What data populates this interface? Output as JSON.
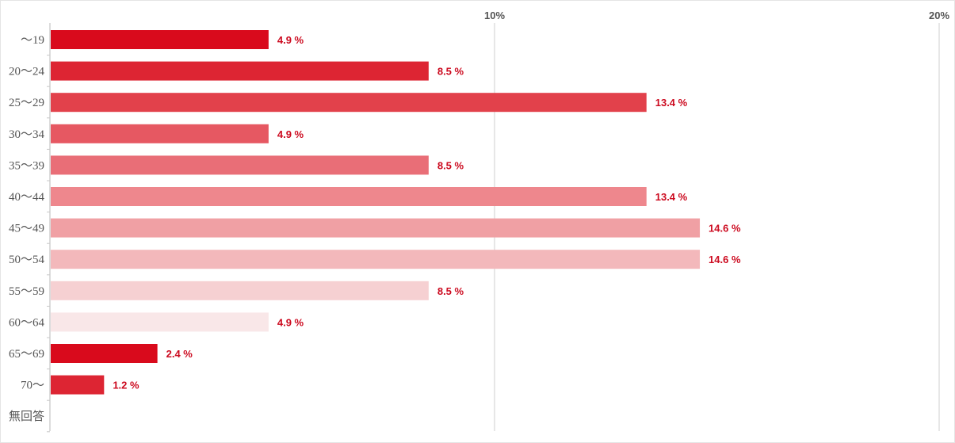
{
  "chart_data": {
    "type": "bar",
    "orientation": "horizontal",
    "categories": [
      "〜19",
      "20〜24",
      "25〜29",
      "30〜34",
      "35〜39",
      "40〜44",
      "45〜49",
      "50〜54",
      "55〜59",
      "60〜64",
      "65〜69",
      "70〜",
      "無回答"
    ],
    "values": [
      4.9,
      8.5,
      13.4,
      4.9,
      8.5,
      13.4,
      14.6,
      14.6,
      8.5,
      4.9,
      2.4,
      1.2,
      null
    ],
    "value_labels": [
      "4.9 %",
      "8.5 %",
      "13.4 %",
      "4.9 %",
      "8.5 %",
      "13.4 %",
      "14.6 %",
      "14.6 %",
      "8.5 %",
      "4.9 %",
      "2.4 %",
      "1.2 %",
      ""
    ],
    "bar_colors": [
      "#d90a1c",
      "#dd2533",
      "#e2414b",
      "#e65862",
      "#e96e77",
      "#ee878d",
      "#f0a0a4",
      "#f3b8bb",
      "#f6d0d2",
      "#f9e7e8",
      "#d90a1c",
      "#dd2533",
      "#e2414b"
    ],
    "xticks": [
      10,
      20
    ],
    "xtick_labels": [
      "10%",
      "20%"
    ],
    "xlim": [
      0,
      20
    ],
    "grid": true,
    "title": "",
    "xlabel": "",
    "ylabel": "",
    "label_color": "#cc0a1f"
  }
}
